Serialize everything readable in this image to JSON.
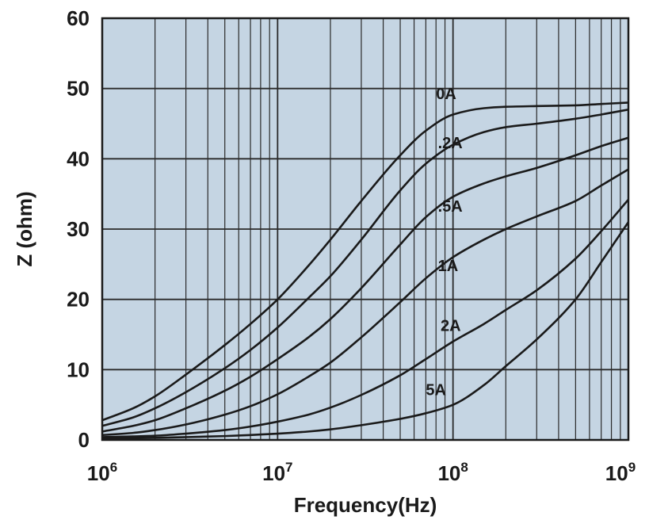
{
  "chart_data": {
    "type": "line",
    "title": "",
    "xlabel": "Frequency(Hz)",
    "ylabel": "Z (ohm)",
    "x_scale": "log",
    "xlim": [
      1000000,
      1000000000
    ],
    "ylim": [
      0,
      60
    ],
    "grid": true,
    "legend": "none",
    "x_ticks": [
      {
        "base": "10",
        "exp": "6",
        "value": 1000000
      },
      {
        "base": "10",
        "exp": "7",
        "value": 10000000
      },
      {
        "base": "10",
        "exp": "8",
        "value": 100000000
      },
      {
        "base": "10",
        "exp": "9",
        "value": 1000000000
      }
    ],
    "y_ticks": [
      "0",
      "10",
      "20",
      "30",
      "40",
      "50",
      "60"
    ],
    "colors": {
      "plot_background": "#c5d5e3",
      "grid": "#2a2a2a",
      "curve": "#1a1a1a"
    },
    "series": [
      {
        "name": "0A",
        "x": [
          1000000,
          1500000,
          2000000,
          3000000,
          5000000,
          7000000,
          10000000,
          15000000,
          20000000,
          30000000,
          50000000,
          70000000,
          100000000,
          150000000,
          200000000,
          300000000,
          500000000,
          700000000,
          1000000000
        ],
        "y": [
          2.8,
          4.5,
          6.2,
          9.3,
          13.5,
          16.5,
          20.0,
          24.8,
          28.5,
          34.0,
          40.5,
          44.0,
          46.3,
          47.2,
          47.4,
          47.5,
          47.6,
          47.8,
          48.0
        ]
      },
      {
        "name": ".2A",
        "x": [
          1000000,
          1500000,
          2000000,
          3000000,
          5000000,
          7000000,
          10000000,
          15000000,
          20000000,
          30000000,
          50000000,
          70000000,
          100000000,
          150000000,
          200000000,
          300000000,
          500000000,
          700000000,
          1000000000
        ],
        "y": [
          2.0,
          3.2,
          4.5,
          6.8,
          10.2,
          12.8,
          16.0,
          20.2,
          23.3,
          28.5,
          35.5,
          39.3,
          42.0,
          43.8,
          44.5,
          45.0,
          45.7,
          46.3,
          47.0
        ]
      },
      {
        "name": ".5A",
        "x": [
          1000000,
          1500000,
          2000000,
          3000000,
          5000000,
          7000000,
          10000000,
          15000000,
          20000000,
          30000000,
          50000000,
          70000000,
          100000000,
          150000000,
          200000000,
          300000000,
          500000000,
          700000000,
          1000000000
        ],
        "y": [
          1.2,
          2.0,
          2.8,
          4.5,
          7.0,
          9.0,
          11.5,
          14.6,
          17.2,
          21.6,
          27.8,
          31.7,
          34.6,
          36.5,
          37.5,
          38.7,
          40.5,
          41.8,
          43.0
        ]
      },
      {
        "name": "1A",
        "x": [
          1000000,
          1500000,
          2000000,
          3000000,
          5000000,
          7000000,
          10000000,
          15000000,
          20000000,
          30000000,
          50000000,
          70000000,
          100000000,
          150000000,
          200000000,
          300000000,
          500000000,
          700000000,
          1000000000
        ],
        "y": [
          0.7,
          1.0,
          1.4,
          2.2,
          3.6,
          4.8,
          6.5,
          9.0,
          11.0,
          14.6,
          19.6,
          23.0,
          26.0,
          28.5,
          30.0,
          31.8,
          34.0,
          36.2,
          38.5
        ]
      },
      {
        "name": "2A",
        "x": [
          1000000,
          1500000,
          2000000,
          3000000,
          5000000,
          7000000,
          10000000,
          15000000,
          20000000,
          30000000,
          50000000,
          70000000,
          100000000,
          150000000,
          200000000,
          300000000,
          500000000,
          700000000,
          1000000000
        ],
        "y": [
          0.4,
          0.5,
          0.6,
          0.9,
          1.4,
          1.9,
          2.6,
          3.6,
          4.6,
          6.4,
          9.2,
          11.5,
          14.0,
          16.5,
          18.5,
          21.3,
          25.8,
          29.7,
          34.2
        ]
      },
      {
        "name": "5A",
        "x": [
          1000000,
          1500000,
          2000000,
          3000000,
          5000000,
          7000000,
          10000000,
          15000000,
          20000000,
          30000000,
          50000000,
          70000000,
          100000000,
          150000000,
          200000000,
          300000000,
          500000000,
          700000000,
          1000000000
        ],
        "y": [
          0.2,
          0.25,
          0.3,
          0.4,
          0.55,
          0.7,
          0.9,
          1.2,
          1.5,
          2.1,
          3.0,
          3.8,
          5.0,
          7.8,
          10.5,
          14.3,
          20.0,
          25.3,
          31.0
        ]
      }
    ],
    "annotations": [
      {
        "text": "0A",
        "x": 80000000,
        "y": 48.5
      },
      {
        "text": ".2A",
        "x": 82000000,
        "y": 41.5
      },
      {
        "text": ".5A",
        "x": 82000000,
        "y": 32.5
      },
      {
        "text": "1A",
        "x": 82000000,
        "y": 24.0
      },
      {
        "text": "2A",
        "x": 85000000,
        "y": 15.5
      },
      {
        "text": "5A",
        "x": 70000000,
        "y": 6.4
      }
    ]
  }
}
